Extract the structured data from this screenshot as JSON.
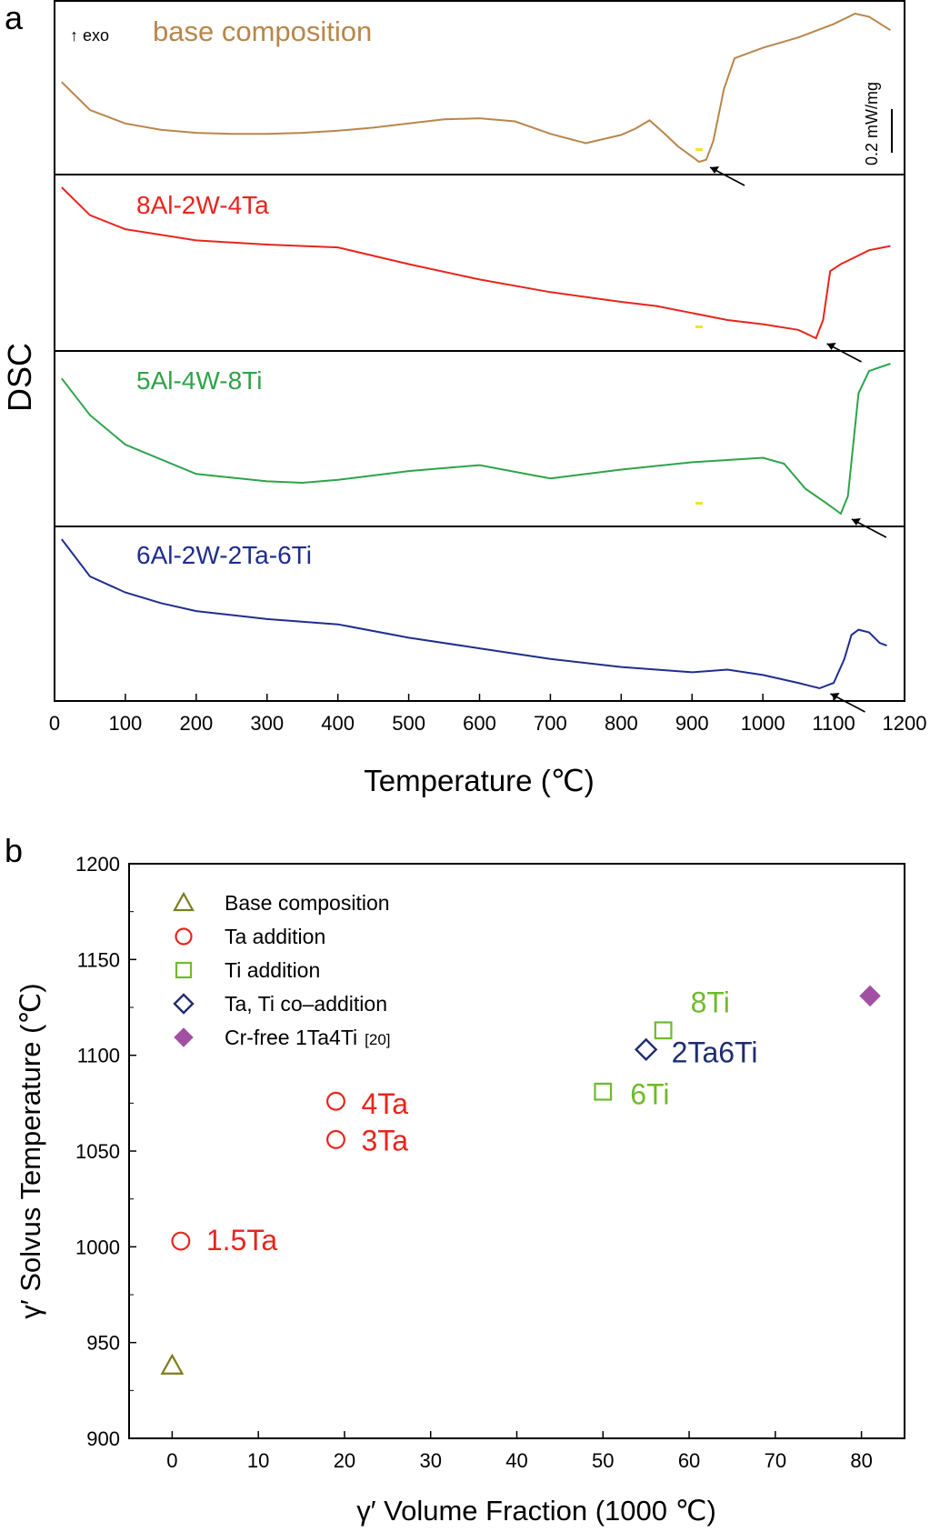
{
  "chart_data": [
    {
      "type": "line",
      "panel_label": "a",
      "ylabel": "DSC",
      "xlabel": "Temperature (℃)",
      "xlim": [
        0,
        1200
      ],
      "xticks": [
        0,
        100,
        200,
        300,
        400,
        500,
        600,
        700,
        800,
        900,
        1000,
        1100,
        1200
      ],
      "exo_label": "↑ exo",
      "scale_bar_label": "0.2 mW/mg",
      "series": [
        {
          "name": "base composition",
          "color": "#b8864b",
          "x": [
            10,
            50,
            100,
            150,
            200,
            250,
            300,
            350,
            400,
            450,
            500,
            550,
            600,
            650,
            700,
            750,
            800,
            820,
            840,
            860,
            880,
            900,
            910,
            920,
            930,
            945,
            960,
            1000,
            1050,
            1100,
            1130,
            1150,
            1180
          ],
          "y": [
            0.62,
            0.35,
            0.22,
            0.16,
            0.13,
            0.12,
            0.12,
            0.13,
            0.15,
            0.18,
            0.22,
            0.26,
            0.27,
            0.24,
            0.12,
            0.03,
            0.11,
            0.17,
            0.25,
            0.13,
            0.0,
            -0.1,
            -0.15,
            -0.13,
            0.05,
            0.55,
            0.85,
            0.95,
            1.05,
            1.18,
            1.28,
            1.25,
            1.12
          ],
          "arrow_at_x": 910
        },
        {
          "name": "8Al-2W-4Ta",
          "color": "#e8251c",
          "x": [
            10,
            50,
            100,
            200,
            300,
            400,
            500,
            600,
            700,
            800,
            850,
            900,
            950,
            1000,
            1050,
            1075,
            1085,
            1095,
            1110,
            1130,
            1150,
            1180
          ],
          "y": [
            1.0,
            0.8,
            0.7,
            0.62,
            0.59,
            0.57,
            0.45,
            0.34,
            0.25,
            0.18,
            0.15,
            0.1,
            0.05,
            0.02,
            -0.02,
            -0.08,
            0.05,
            0.4,
            0.45,
            0.5,
            0.55,
            0.58
          ],
          "arrow_at_x": 1085
        },
        {
          "name": "5Al-4W-8Ti",
          "color": "#2ea34a",
          "x": [
            10,
            50,
            100,
            200,
            300,
            350,
            400,
            500,
            600,
            700,
            800,
            900,
            1000,
            1030,
            1060,
            1090,
            1110,
            1120,
            1135,
            1150,
            1180
          ],
          "y": [
            0.9,
            0.65,
            0.45,
            0.25,
            0.2,
            0.19,
            0.21,
            0.27,
            0.31,
            0.22,
            0.28,
            0.33,
            0.36,
            0.32,
            0.15,
            0.05,
            -0.02,
            0.1,
            0.8,
            0.95,
            1.0
          ],
          "arrow_at_x": 1110
        },
        {
          "name": "6Al-2W-2Ta-6Ti",
          "color": "#1f2d8f",
          "x": [
            10,
            50,
            100,
            150,
            200,
            300,
            400,
            500,
            600,
            700,
            800,
            850,
            900,
            950,
            1000,
            1050,
            1080,
            1100,
            1115,
            1125,
            1135,
            1150,
            1165,
            1175
          ],
          "y": [
            1.0,
            0.72,
            0.6,
            0.52,
            0.46,
            0.4,
            0.36,
            0.26,
            0.18,
            0.1,
            0.04,
            0.02,
            0.0,
            0.02,
            -0.02,
            -0.08,
            -0.12,
            -0.08,
            0.1,
            0.28,
            0.32,
            0.3,
            0.22,
            0.2
          ],
          "arrow_at_x": 1085
        }
      ]
    },
    {
      "type": "scatter",
      "panel_label": "b",
      "xlabel": "γ′ Volume Fraction (1000 ℃)",
      "ylabel": "γ′ Solvus Temperature (℃)",
      "xlim": [
        -5,
        85
      ],
      "ylim": [
        900,
        1200
      ],
      "xticks": [
        0,
        10,
        20,
        30,
        40,
        50,
        60,
        70,
        80
      ],
      "yticks": [
        900,
        950,
        1000,
        1050,
        1100,
        1150,
        1200
      ],
      "legend_position": "top-left",
      "series": [
        {
          "name": "Base composition",
          "marker": "triangle-open",
          "color": "#7c7c1e",
          "points": [
            {
              "x": 0,
              "y": 938,
              "label": ""
            }
          ]
        },
        {
          "name": "Ta addition",
          "marker": "circle-open",
          "color": "#e8251c",
          "points": [
            {
              "x": 1,
              "y": 1003,
              "label": "1.5Ta"
            },
            {
              "x": 19,
              "y": 1056,
              "label": "3Ta"
            },
            {
              "x": 19,
              "y": 1076,
              "label": "4Ta"
            }
          ]
        },
        {
          "name": "Ti addition",
          "marker": "square-open",
          "color": "#6fba2c",
          "points": [
            {
              "x": 50,
              "y": 1081,
              "label": "6Ti"
            },
            {
              "x": 57,
              "y": 1113,
              "label": "8Ti"
            }
          ]
        },
        {
          "name": "Ta, Ti co–addition",
          "marker": "diamond-open",
          "color": "#1f2d6e",
          "points": [
            {
              "x": 55,
              "y": 1103,
              "label": "2Ta6Ti"
            }
          ]
        },
        {
          "name": "Cr-free 1Ta4Ti",
          "legend_ref": "[20]",
          "marker": "diamond-filled",
          "color": "#a150a3",
          "points": [
            {
              "x": 81,
              "y": 1131,
              "label": ""
            }
          ]
        }
      ]
    }
  ]
}
